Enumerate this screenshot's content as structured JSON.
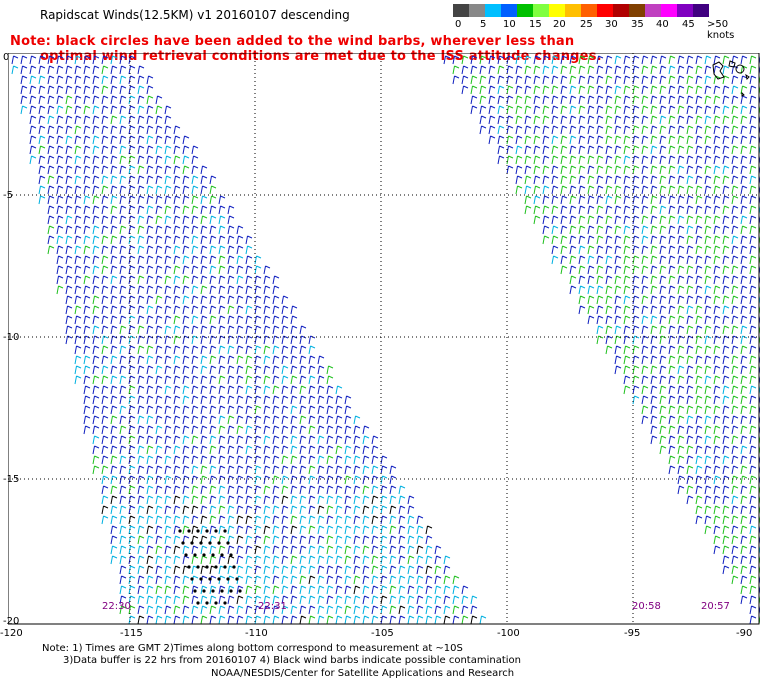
{
  "title": "Rapidscat Winds(12.5KM) v1 20160107 descending",
  "note_lines": [
    "Note: black circles have been added to the wind barbs, wherever less than",
    "optimal wind retrieval conditions are met due to the ISS attitude changes."
  ],
  "legend": {
    "colors": [
      "#444444",
      "#888888",
      "#00bfff",
      "#0060ff",
      "#00c000",
      "#80ff40",
      "#ffff00",
      "#ffbf00",
      "#ff6000",
      "#ff0000",
      "#b00000",
      "#804000",
      "#c040c0",
      "#ff00ff",
      "#8000c0",
      "#400080"
    ],
    "labels": [
      "0",
      "5",
      "10",
      "15",
      "20",
      "25",
      "30",
      "35",
      "40",
      "45",
      ">50 knots"
    ]
  },
  "axes": {
    "y_labels": [
      "0",
      "-5",
      "-10",
      "-15",
      "-20"
    ],
    "x_labels": [
      "-120",
      "-115",
      "-110",
      "-105",
      "-100",
      "-95",
      "-90"
    ]
  },
  "times": [
    "22:30",
    "22:31",
    "20:58",
    "20:57"
  ],
  "footer": [
    "Note: 1) Times are GMT 2)Times along bottom correspond to measurement at ~10S",
    "3)Data buffer is 22 hrs from 20160107 4) Black wind barbs indicate possible contamination",
    "NOAA/NESDIS/Center for Satellite Applications and Research"
  ]
}
